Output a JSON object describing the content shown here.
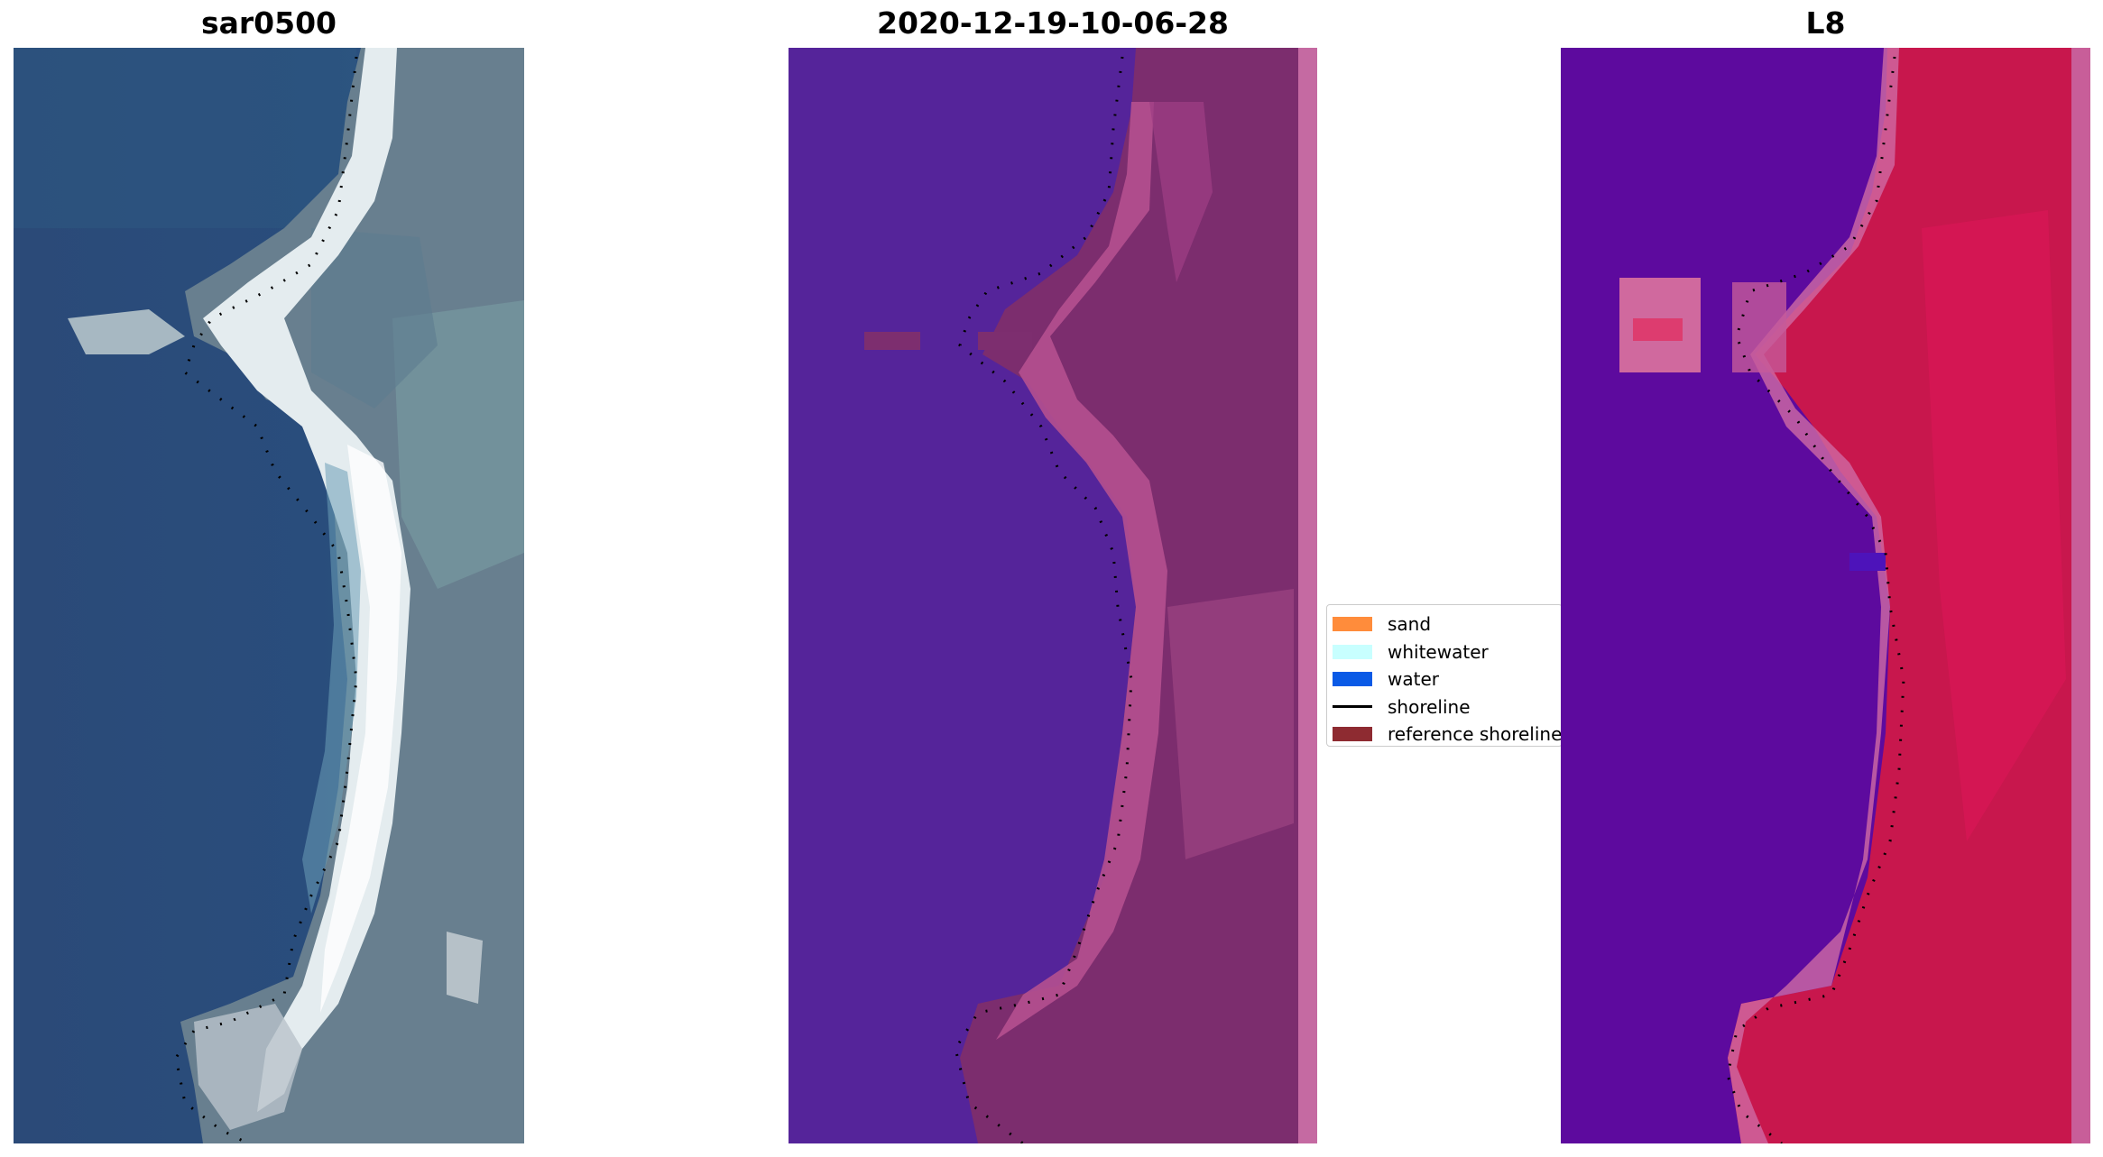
{
  "panels": [
    {
      "title": "sar0500"
    },
    {
      "title": "2020-12-19-10-06-28"
    },
    {
      "title": "L8"
    }
  ],
  "legend": {
    "items": [
      {
        "label": "sand",
        "kind": "patch",
        "color": "#ff8c3b"
      },
      {
        "label": "whitewater",
        "kind": "patch",
        "color": "#c8ffff"
      },
      {
        "label": "water",
        "kind": "patch",
        "color": "#0a5ae6"
      },
      {
        "label": "shoreline",
        "kind": "line",
        "color": "#000000"
      },
      {
        "label": "reference shoreline",
        "kind": "patch",
        "color": "#8e2b31"
      }
    ]
  },
  "colors": {
    "rgb_ocean": "#2a4c7a",
    "rgb_land": "#6a8796",
    "rgb_beach": "#e6eef0",
    "classified_water": "#55249a",
    "classified_land": "#7c2d6e",
    "classified_beach": "#b5508f",
    "index_water": "#5d0a9e",
    "index_land": "#c8174d",
    "index_transition": "#d06aa4"
  }
}
